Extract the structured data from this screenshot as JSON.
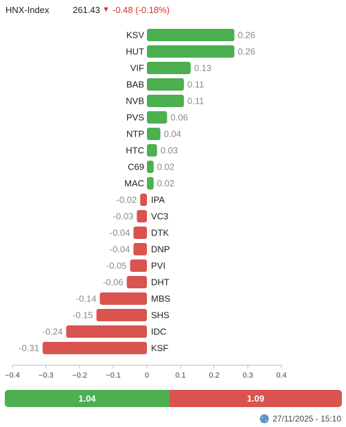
{
  "header": {
    "index_name": "HNX-Index",
    "index_value": "261.43",
    "direction_icon": "triangle-down-icon",
    "change_text": "-0.48 (-0.18%)"
  },
  "colors": {
    "positive": "#4caf50",
    "negative": "#d9534f",
    "change_text": "#d93025",
    "positive_label": "#888888",
    "negative_label": "#888888"
  },
  "chart_data": {
    "type": "bar",
    "orientation": "horizontal",
    "title": "",
    "xlabel": "",
    "ylabel": "",
    "xlim": [
      -0.4,
      0.4
    ],
    "xticks": [
      -0.4,
      -0.3,
      -0.2,
      -0.1,
      0,
      0.1,
      0.2,
      0.3,
      0.4
    ],
    "xtick_labels": [
      "−0.4",
      "−0.3",
      "−0.2",
      "−0.1",
      "0",
      "0.1",
      "0.2",
      "0.3",
      "0.4"
    ],
    "grid": false,
    "categories": [
      "KSV",
      "HUT",
      "VIF",
      "BAB",
      "NVB",
      "PVS",
      "NTP",
      "HTC",
      "C69",
      "MAC",
      "IPA",
      "VC3",
      "DTK",
      "DNP",
      "PVI",
      "DHT",
      "MBS",
      "SHS",
      "IDC",
      "KSF"
    ],
    "values": [
      0.26,
      0.26,
      0.13,
      0.11,
      0.11,
      0.06,
      0.04,
      0.03,
      0.02,
      0.02,
      -0.02,
      -0.03,
      -0.04,
      -0.04,
      -0.05,
      -0.06,
      -0.14,
      -0.15,
      -0.24,
      -0.31
    ],
    "value_labels": [
      "0.26",
      "0.26",
      "0.13",
      "0.11",
      "0.11",
      "0.06",
      "0.04",
      "0.03",
      "0.02",
      "0.02",
      "-0.02",
      "-0.03",
      "-0.04",
      "-0.04",
      "-0.05",
      "-0.06",
      "-0.14",
      "-0.15",
      "-0.24",
      "-0.31"
    ]
  },
  "breadth": {
    "positive_total": 1.04,
    "negative_total": 1.09,
    "positive_label": "1.04",
    "negative_label": "1.09"
  },
  "footer": {
    "icon": "globe-icon",
    "timestamp": "27/11/2025 - 15:10"
  }
}
